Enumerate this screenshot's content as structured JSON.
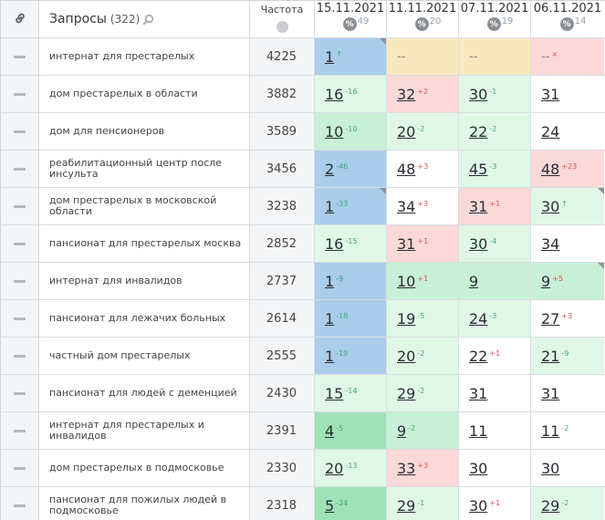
{
  "header": {
    "query_title": "Запросы",
    "query_count": "(322)",
    "freq_title": "Частота",
    "dates": [
      {
        "date": "15.11.2021",
        "pct": "49"
      },
      {
        "date": "11.11.2021",
        "pct": "20"
      },
      {
        "date": "07.11.2021",
        "pct": "19"
      },
      {
        "date": "06.11.2021",
        "pct": "14"
      }
    ],
    "pct_symbol": "%"
  },
  "rows": [
    {
      "query": "интернат для престарелых",
      "freq": "4225",
      "cells": [
        {
          "pos": "1",
          "delta": "↑",
          "dir": "newup",
          "bg": "top1",
          "corner": true
        },
        {
          "pos": "--",
          "delta": "",
          "dir": "",
          "bg": "none",
          "corner": false,
          "plain": true
        },
        {
          "pos": "--",
          "delta": "",
          "dir": "",
          "bg": "none",
          "corner": false,
          "plain": true
        },
        {
          "pos": "--",
          "delta": "×",
          "dir": "x",
          "bg": "out",
          "corner": false,
          "plain": true
        }
      ]
    },
    {
      "query": "дом престарелых в области",
      "freq": "3882",
      "cells": [
        {
          "pos": "16",
          "delta": "-16",
          "dir": "up",
          "bg": "top50",
          "corner": false
        },
        {
          "pos": "32",
          "delta": "+2",
          "dir": "down",
          "bg": "out",
          "corner": false
        },
        {
          "pos": "30",
          "delta": "-1",
          "dir": "up",
          "bg": "top50",
          "corner": false
        },
        {
          "pos": "31",
          "delta": "",
          "dir": "",
          "bg": "white",
          "corner": false
        }
      ]
    },
    {
      "query": "дом для пенсионеров",
      "freq": "3589",
      "cells": [
        {
          "pos": "10",
          "delta": "-10",
          "dir": "up",
          "bg": "top10",
          "corner": false
        },
        {
          "pos": "20",
          "delta": "-2",
          "dir": "up",
          "bg": "top50",
          "corner": false
        },
        {
          "pos": "22",
          "delta": "-2",
          "dir": "up",
          "bg": "top50",
          "corner": false
        },
        {
          "pos": "24",
          "delta": "",
          "dir": "",
          "bg": "white",
          "corner": false
        }
      ]
    },
    {
      "query": "реабилитационный центр после инсульта",
      "freq": "3456",
      "cells": [
        {
          "pos": "2",
          "delta": "-46",
          "dir": "up",
          "bg": "top1",
          "corner": false
        },
        {
          "pos": "48",
          "delta": "+3",
          "dir": "down",
          "bg": "white",
          "corner": false
        },
        {
          "pos": "45",
          "delta": "-3",
          "dir": "up",
          "bg": "top50",
          "corner": false
        },
        {
          "pos": "48",
          "delta": "+23",
          "dir": "down",
          "bg": "out",
          "corner": false
        }
      ]
    },
    {
      "query": "дом престарелых в московской области",
      "freq": "3238",
      "cells": [
        {
          "pos": "1",
          "delta": "-33",
          "dir": "up",
          "bg": "top1",
          "corner": true
        },
        {
          "pos": "34",
          "delta": "+3",
          "dir": "down",
          "bg": "white",
          "corner": false
        },
        {
          "pos": "31",
          "delta": "+1",
          "dir": "down",
          "bg": "out",
          "corner": false
        },
        {
          "pos": "30",
          "delta": "↑",
          "dir": "newup",
          "bg": "top50",
          "corner": true
        }
      ]
    },
    {
      "query": "пансионат для престарелых москва",
      "freq": "2852",
      "cells": [
        {
          "pos": "16",
          "delta": "-15",
          "dir": "up",
          "bg": "top50",
          "corner": false
        },
        {
          "pos": "31",
          "delta": "+1",
          "dir": "down",
          "bg": "out",
          "corner": false
        },
        {
          "pos": "30",
          "delta": "-4",
          "dir": "up",
          "bg": "top50",
          "corner": false
        },
        {
          "pos": "34",
          "delta": "",
          "dir": "",
          "bg": "white",
          "corner": false
        }
      ]
    },
    {
      "query": "интернат для инвалидов",
      "freq": "2737",
      "cells": [
        {
          "pos": "1",
          "delta": "-9",
          "dir": "up",
          "bg": "top1",
          "corner": false
        },
        {
          "pos": "10",
          "delta": "+1",
          "dir": "down",
          "bg": "top10",
          "corner": false
        },
        {
          "pos": "9",
          "delta": "",
          "dir": "",
          "bg": "top10",
          "corner": false
        },
        {
          "pos": "9",
          "delta": "+5",
          "dir": "down",
          "bg": "top10",
          "corner": true
        }
      ]
    },
    {
      "query": "пансионат для лежачих больных",
      "freq": "2614",
      "cells": [
        {
          "pos": "1",
          "delta": "-18",
          "dir": "up",
          "bg": "top1",
          "corner": false
        },
        {
          "pos": "19",
          "delta": "-5",
          "dir": "up",
          "bg": "top50",
          "corner": false
        },
        {
          "pos": "24",
          "delta": "-3",
          "dir": "up",
          "bg": "top50",
          "corner": false
        },
        {
          "pos": "27",
          "delta": "+3",
          "dir": "down",
          "bg": "white",
          "corner": false
        }
      ]
    },
    {
      "query": "частный дом престарелых",
      "freq": "2555",
      "cells": [
        {
          "pos": "1",
          "delta": "-19",
          "dir": "up",
          "bg": "top1",
          "corner": false
        },
        {
          "pos": "20",
          "delta": "-2",
          "dir": "up",
          "bg": "top50",
          "corner": false
        },
        {
          "pos": "22",
          "delta": "+1",
          "dir": "down",
          "bg": "white",
          "corner": false
        },
        {
          "pos": "21",
          "delta": "-9",
          "dir": "up",
          "bg": "top50",
          "corner": false
        }
      ]
    },
    {
      "query": "пансионат для людей с деменцией",
      "freq": "2430",
      "cells": [
        {
          "pos": "15",
          "delta": "-14",
          "dir": "up",
          "bg": "top50",
          "corner": false
        },
        {
          "pos": "29",
          "delta": "-2",
          "dir": "up",
          "bg": "top50",
          "corner": false
        },
        {
          "pos": "31",
          "delta": "",
          "dir": "",
          "bg": "white",
          "corner": false
        },
        {
          "pos": "31",
          "delta": "",
          "dir": "",
          "bg": "white",
          "corner": false
        }
      ]
    },
    {
      "query": "интернат для престарелых и инвалидов",
      "freq": "2391",
      "cells": [
        {
          "pos": "4",
          "delta": "-5",
          "dir": "up",
          "bg": "top3",
          "corner": false
        },
        {
          "pos": "9",
          "delta": "-2",
          "dir": "up",
          "bg": "top10",
          "corner": false
        },
        {
          "pos": "11",
          "delta": "",
          "dir": "",
          "bg": "white",
          "corner": false
        },
        {
          "pos": "11",
          "delta": "-2",
          "dir": "up",
          "bg": "white",
          "corner": false
        }
      ]
    },
    {
      "query": "дом престарелых в подмосковье",
      "freq": "2330",
      "cells": [
        {
          "pos": "20",
          "delta": "-13",
          "dir": "up",
          "bg": "top50",
          "corner": false
        },
        {
          "pos": "33",
          "delta": "+3",
          "dir": "down",
          "bg": "out",
          "corner": false
        },
        {
          "pos": "30",
          "delta": "",
          "dir": "",
          "bg": "white",
          "corner": false
        },
        {
          "pos": "30",
          "delta": "",
          "dir": "",
          "bg": "white",
          "corner": false
        }
      ]
    },
    {
      "query": "пансионат для пожилых людей в подмосковье",
      "freq": "2318",
      "cells": [
        {
          "pos": "5",
          "delta": "-24",
          "dir": "up",
          "bg": "top3",
          "corner": false
        },
        {
          "pos": "29",
          "delta": "-1",
          "dir": "up",
          "bg": "top50",
          "corner": false
        },
        {
          "pos": "30",
          "delta": "+1",
          "dir": "down",
          "bg": "white",
          "corner": false
        },
        {
          "pos": "29",
          "delta": "-2",
          "dir": "up",
          "bg": "top50",
          "corner": false
        }
      ]
    }
  ]
}
